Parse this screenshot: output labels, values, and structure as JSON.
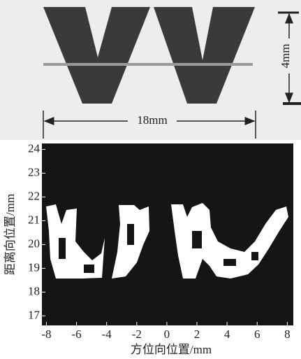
{
  "figure": {
    "height_label": "4mm",
    "width_label": "18mm"
  },
  "chart_data": {
    "type": "image",
    "xlabel": "方位向位置/mm",
    "ylabel": "距离向位置/mm",
    "xlim": [
      -8.3,
      8.4
    ],
    "ylim": [
      16.6,
      24.25
    ],
    "xticks": [
      -8,
      -6,
      -4,
      -2,
      0,
      2,
      4,
      6,
      8
    ],
    "yticks": [
      17,
      18,
      19,
      20,
      21,
      22,
      23,
      24
    ]
  }
}
